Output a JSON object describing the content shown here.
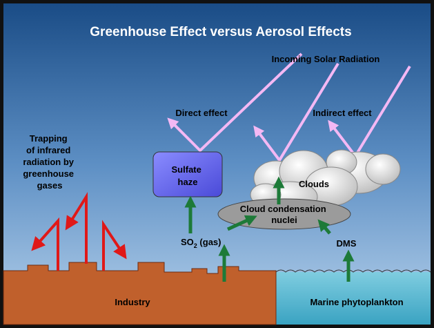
{
  "title": "Greenhouse Effect versus Aerosol Effects",
  "labels": {
    "incoming": "Incoming Solar Radiation",
    "direct": "Direct effect",
    "indirect": "Indirect effect",
    "trapping": [
      "Trapping",
      "of infrared",
      "radiation by",
      "greenhouse",
      "gases"
    ],
    "haze": [
      "Sulfate",
      "haze"
    ],
    "clouds": "Clouds",
    "ccn": [
      "Cloud condensation",
      "nuclei"
    ],
    "so2": [
      "SO",
      "2",
      " (gas)"
    ],
    "dms": "DMS",
    "industry": "Industry",
    "marine": "Marine phytoplankton"
  }
}
